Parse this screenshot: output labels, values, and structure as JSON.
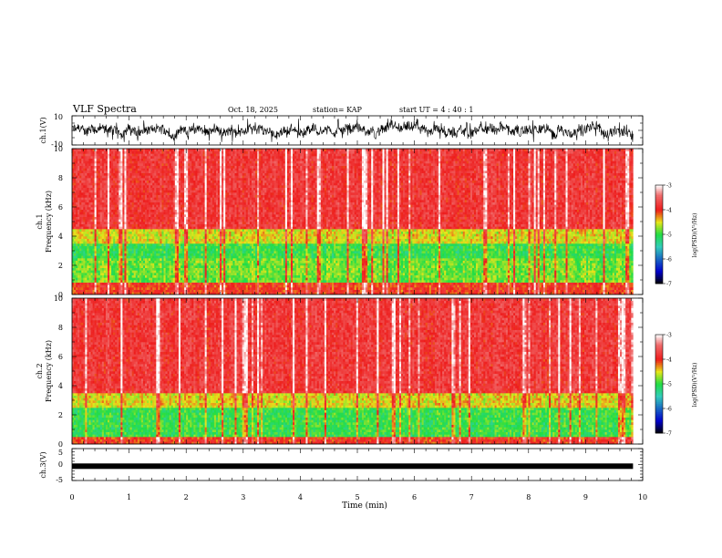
{
  "header": {
    "title": "VLF Spectra",
    "date": "Oct. 18, 2025",
    "station": "station= KAP",
    "start_ut": "start UT =  4 : 40 : 1"
  },
  "colorbar_label": "log(PSD)(V²/Hz)",
  "colors": {
    "red": "#ee1c1c",
    "yellow": "#e6e61a",
    "green": "#22dd44",
    "cyan": "#33ccbb",
    "blue": "#0000cc",
    "black": "#000000"
  },
  "chart_data": [
    {
      "type": "line",
      "name": "ch1-waveform",
      "ylabel": "ch.1(V)",
      "ylim": [
        -10,
        10
      ],
      "ytick_labels": [
        "10",
        "-10"
      ],
      "xlim": [
        0,
        10
      ],
      "data_end_min": 9.83,
      "description_level": "noise around 0 V, peaks near ±7 V"
    },
    {
      "type": "heatmap",
      "name": "ch1-spectrogram",
      "ylabel": "ch.1\nFrequency (kHz)",
      "ylabel_line1": "ch.1",
      "ylabel_line2": "Frequency (kHz)",
      "ylim": [
        0,
        10
      ],
      "ytick_labels": [
        "0",
        "2",
        "4",
        "6",
        "8",
        "10"
      ],
      "xlim": [
        0,
        10
      ],
      "data_end_min": 9.83,
      "colorbar": {
        "range": [
          -7,
          -3
        ],
        "tick_labels": [
          "-3",
          "-4",
          "-5",
          "-6",
          "-7"
        ]
      },
      "bands": [
        {
          "f_low": 4.5,
          "f_high": 10,
          "log_psd": -3.8
        },
        {
          "f_low": 3.5,
          "f_high": 4.5,
          "log_psd": -4.5
        },
        {
          "f_low": 2.5,
          "f_high": 3.5,
          "log_psd": -5.0
        },
        {
          "f_low": 0.8,
          "f_high": 2.5,
          "log_psd": -4.8
        },
        {
          "f_low": 0,
          "f_high": 0.8,
          "log_psd": -4.0
        }
      ]
    },
    {
      "type": "heatmap",
      "name": "ch2-spectrogram",
      "ylabel": "ch.2\nFrequency (kHz)",
      "ylabel_line1": "ch.2",
      "ylabel_line2": "Frequency (kHz)",
      "ylim": [
        0,
        10
      ],
      "ytick_labels": [
        "0",
        "2",
        "4",
        "6",
        "8",
        "10"
      ],
      "xlim": [
        0,
        10
      ],
      "data_end_min": 9.83,
      "colorbar": {
        "range": [
          -7,
          -3
        ],
        "tick_labels": [
          "-3",
          "-4",
          "-5",
          "-6",
          "-7"
        ]
      },
      "bands": [
        {
          "f_low": 3.5,
          "f_high": 10,
          "log_psd": -3.8
        },
        {
          "f_low": 2.5,
          "f_high": 3.5,
          "log_psd": -4.5
        },
        {
          "f_low": 0.5,
          "f_high": 2.5,
          "log_psd": -5.0
        },
        {
          "f_low": 0,
          "f_high": 0.5,
          "log_psd": -4.0
        }
      ]
    },
    {
      "type": "line",
      "name": "ch3-waveform",
      "ylabel": "ch.3(V)",
      "ylim": [
        -5,
        5
      ],
      "ytick_labels": [
        "5",
        "0",
        "-5"
      ],
      "xlim": [
        0,
        10
      ],
      "data_end_min": 9.83,
      "level_v": -0.5
    }
  ],
  "xaxis": {
    "label": "Time (min)",
    "tick_labels": [
      "0",
      "1",
      "2",
      "3",
      "4",
      "5",
      "6",
      "7",
      "8",
      "9",
      "10"
    ]
  }
}
